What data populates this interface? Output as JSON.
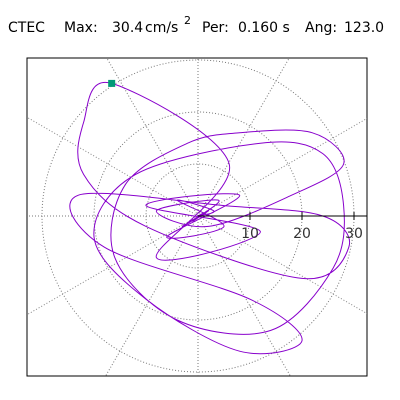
{
  "chart_data": {
    "type": "polar",
    "station": "CTEC",
    "max_label": "Max:",
    "max": 30.4,
    "unit": "cm/s",
    "unit_power": "2",
    "period_label": "Per:",
    "period": 0.16,
    "period_label_value": "0.160 s",
    "angle_label": "Ang:",
    "angle": 123.0,
    "angle_value_label": "123.0",
    "rlim": [
      0,
      30
    ],
    "rticks": [
      10,
      20,
      30
    ],
    "angle_grid_step": 30,
    "grid": true,
    "series": [
      {
        "color": "#8800cc",
        "x": [
          0,
          3,
          -4,
          5,
          -6,
          8,
          -10,
          12,
          -8,
          6,
          -16.6,
          -22,
          -22,
          -10,
          20,
          29,
          24,
          5,
          -23,
          -18,
          10,
          20,
          8,
          -10,
          -20,
          -12,
          12,
          24,
          28,
          26,
          14,
          -4,
          -16,
          -14,
          -2,
          8,
          22,
          28,
          18,
          2,
          -8,
          4,
          -3,
          2,
          -1,
          1,
          0
        ],
        "y": [
          0,
          1,
          3,
          -2,
          -4,
          4,
          2,
          -3,
          -8,
          10,
          25.5,
          18,
          8,
          -2,
          -12,
          -6,
          0,
          2,
          4,
          -6,
          -16,
          -24,
          -26,
          -16,
          -4,
          8,
          14,
          12,
          2,
          -10,
          -22,
          -20,
          -8,
          6,
          14,
          16,
          16,
          10,
          4,
          -2,
          1,
          3,
          -2,
          1,
          -1,
          0.5,
          0
        ]
      }
    ],
    "peak": {
      "color": "#009977",
      "x": -16.6,
      "y": 25.5
    }
  }
}
